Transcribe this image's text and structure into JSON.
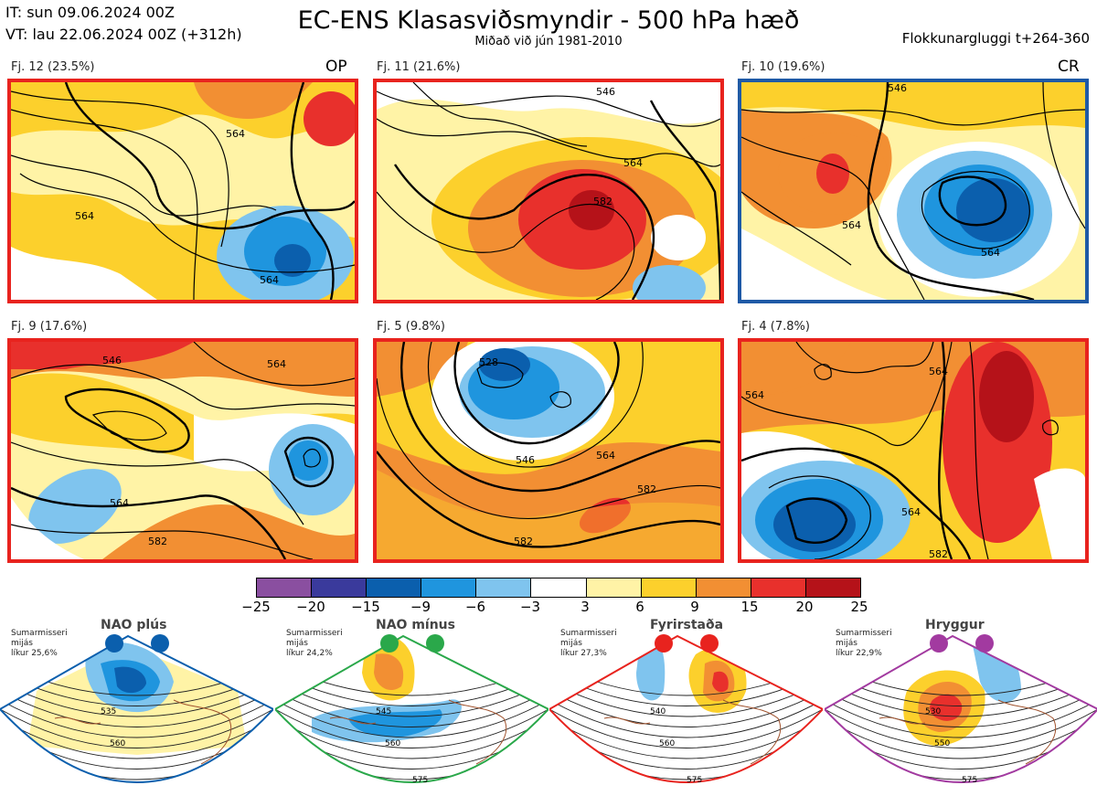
{
  "header": {
    "it_line": "IT: sun 09.06.2024 00Z",
    "vt_line": "VT: lau 22.06.2024 00Z  (+312h)",
    "title": "EC-ENS Klasasviðsmyndir - 500 hPa hæð",
    "subtitle": "Miðað við jún 1981-2010",
    "window": "Flokkunargluggi t+264-360"
  },
  "clusters": [
    {
      "label": "Fj. 12 (23.5%)",
      "tag": "OP",
      "border_color": "#e8231e"
    },
    {
      "label": "Fj. 11 (21.6%)",
      "tag": "",
      "border_color": "#e8231e"
    },
    {
      "label": "Fj. 10 (19.6%)",
      "tag": "CR",
      "border_color": "#1f5aa6"
    },
    {
      "label": "Fj. 9 (17.6%)",
      "tag": "",
      "border_color": "#e8231e"
    },
    {
      "label": "Fj. 5 (9.8%)",
      "tag": "",
      "border_color": "#e8231e"
    },
    {
      "label": "Fj. 4 (7.8%)",
      "tag": "",
      "border_color": "#e8231e"
    }
  ],
  "colorbar": {
    "labels": [
      "−25",
      "−20",
      "−15",
      "−9",
      "−6",
      "−3",
      "3",
      "6",
      "9",
      "15",
      "20",
      "25"
    ],
    "colors": [
      "#8a4fa0",
      "#3a3a9c",
      "#0b5fad",
      "#1f95de",
      "#7fc4ee",
      "#ffffff",
      "#fff3a6",
      "#fcd02c",
      "#f28f33",
      "#e8302c",
      "#b51219"
    ]
  },
  "regimes": [
    {
      "title": "NAO plús",
      "note": "Sumarmisseri\nmijás\nlíkur 25,6%",
      "color": "#0b5fad",
      "contours": [
        "535",
        "560"
      ]
    },
    {
      "title": "NAO mínus",
      "note": "Sumarmisseri\nmijás\nlíkur 24,2%",
      "color": "#2aa84a",
      "contours": [
        "545",
        "560",
        "575"
      ]
    },
    {
      "title": "Fyrirstaða",
      "note": "Sumarmisseri\nmijás\nlíkur 27,3%",
      "color": "#e8231e",
      "contours": [
        "540",
        "560",
        "575"
      ]
    },
    {
      "title": "Hryggur",
      "note": "Sumarmisseri\nmijás\nlíkur 22,9%",
      "color": "#a23aa0",
      "contours": [
        "530",
        "550",
        "575"
      ]
    }
  ],
  "panel_contour_labels": [
    [
      "564",
      "564",
      "564"
    ],
    [
      "546",
      "564",
      "582"
    ],
    [
      "546",
      "564",
      "564"
    ],
    [
      "546",
      "564",
      "564",
      "582"
    ],
    [
      "528",
      "546",
      "564",
      "582",
      "582"
    ],
    [
      "564",
      "564",
      "564",
      "582"
    ]
  ]
}
